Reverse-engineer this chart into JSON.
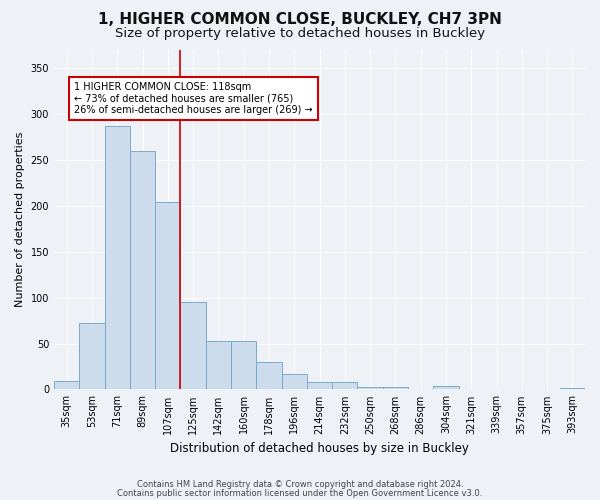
{
  "title1": "1, HIGHER COMMON CLOSE, BUCKLEY, CH7 3PN",
  "title2": "Size of property relative to detached houses in Buckley",
  "xlabel": "Distribution of detached houses by size in Buckley",
  "ylabel": "Number of detached properties",
  "categories": [
    "35sqm",
    "53sqm",
    "71sqm",
    "89sqm",
    "107sqm",
    "125sqm",
    "142sqm",
    "160sqm",
    "178sqm",
    "196sqm",
    "214sqm",
    "232sqm",
    "250sqm",
    "268sqm",
    "286sqm",
    "304sqm",
    "321sqm",
    "339sqm",
    "357sqm",
    "375sqm",
    "393sqm"
  ],
  "values": [
    9,
    72,
    287,
    260,
    204,
    95,
    53,
    53,
    30,
    17,
    8,
    8,
    3,
    3,
    0,
    4,
    0,
    0,
    0,
    0,
    2
  ],
  "bar_color": "#ccdcec",
  "bar_edge_color": "#7aaac8",
  "annotation_text": "1 HIGHER COMMON CLOSE: 118sqm\n← 73% of detached houses are smaller (765)\n26% of semi-detached houses are larger (269) →",
  "annotation_box_color": "#ffffff",
  "annotation_box_edge": "#cc0000",
  "vline_pos": 4.5,
  "ylim": [
    0,
    370
  ],
  "yticks": [
    0,
    50,
    100,
    150,
    200,
    250,
    300,
    350
  ],
  "footer1": "Contains HM Land Registry data © Crown copyright and database right 2024.",
  "footer2": "Contains public sector information licensed under the Open Government Licence v3.0.",
  "background_color": "#eef2f7",
  "plot_background": "#eef2f7",
  "grid_color": "#ffffff",
  "title1_fontsize": 11,
  "title2_fontsize": 9.5,
  "ylabel_fontsize": 8,
  "xlabel_fontsize": 8.5,
  "tick_fontsize": 7,
  "annot_fontsize": 7,
  "footer_fontsize": 6
}
